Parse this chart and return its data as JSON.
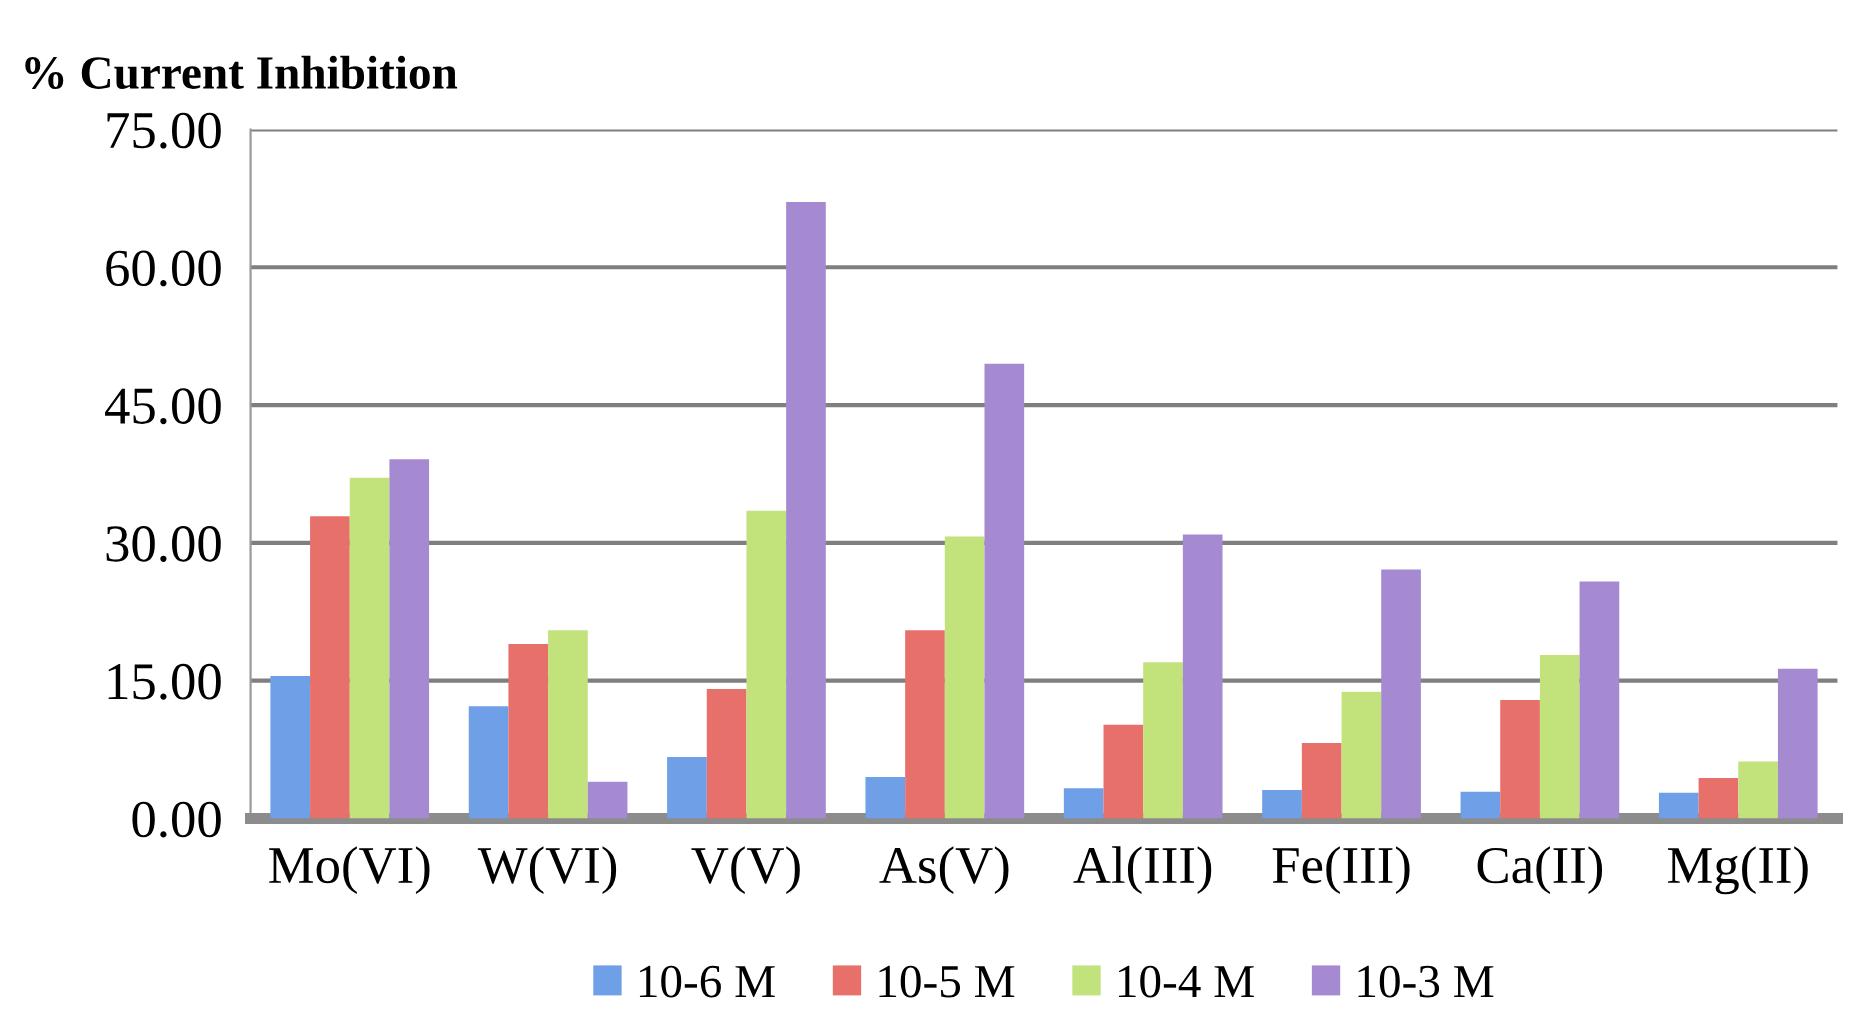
{
  "chart_data": {
    "type": "bar",
    "ylabel": "% Current Inhibition",
    "categories": [
      "Mo(VI)",
      "W(VI)",
      "V(V)",
      "As(V)",
      "Al(III)",
      "Fe(III)",
      "Ca(II)",
      "Mg(II)"
    ],
    "series": [
      {
        "name": "10-6 M",
        "color": "#6f9fe6",
        "values": [
          15.5,
          12.2,
          6.7,
          4.5,
          3.3,
          3.1,
          2.9,
          2.8
        ]
      },
      {
        "name": "10-5 M",
        "color": "#e8706b",
        "values": [
          32.9,
          19.0,
          14.1,
          20.5,
          10.2,
          8.2,
          12.9,
          4.4
        ]
      },
      {
        "name": "10-4 M",
        "color": "#c2e27c",
        "values": [
          37.1,
          20.5,
          33.5,
          30.7,
          17.0,
          13.8,
          17.8,
          6.2
        ]
      },
      {
        "name": "10-3 M",
        "color": "#a58ad2",
        "values": [
          39.1,
          4.0,
          67.1,
          49.5,
          30.9,
          27.1,
          25.8,
          16.3
        ]
      }
    ],
    "ylim": [
      0,
      75
    ],
    "yticks": [
      {
        "value": 0,
        "label": "0.00"
      },
      {
        "value": 15,
        "label": "15.00"
      },
      {
        "value": 30,
        "label": "30.00"
      },
      {
        "value": 45,
        "label": "45.00"
      },
      {
        "value": 60,
        "label": "60.00"
      },
      {
        "value": 75,
        "label": "75.00"
      }
    ],
    "grid": "y",
    "legend": "bottom"
  }
}
